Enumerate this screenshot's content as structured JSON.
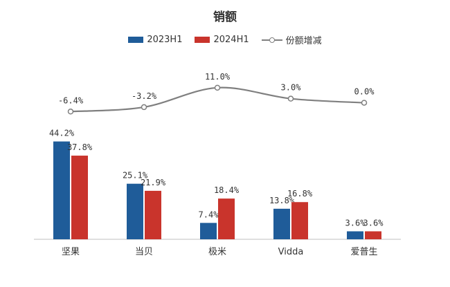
{
  "chart_data": {
    "type": "bar",
    "title": "销额",
    "categories": [
      "坚果",
      "当贝",
      "极米",
      "Vidda",
      "爱普生"
    ],
    "series": [
      {
        "name": "2023H1",
        "type": "bar",
        "values": [
          44.2,
          25.1,
          7.4,
          13.8,
          3.6
        ],
        "labels": [
          "44.2%",
          "25.1%",
          "7.4%",
          "13.8%",
          "3.6%"
        ],
        "color": "#1f5c99"
      },
      {
        "name": "2024H1",
        "type": "bar",
        "values": [
          37.8,
          21.9,
          18.4,
          16.8,
          3.6
        ],
        "labels": [
          "37.8%",
          "21.9%",
          "18.4%",
          "16.8%",
          "3.6%"
        ],
        "color": "#c9342c"
      },
      {
        "name": "份额增减",
        "type": "line",
        "values": [
          -6.4,
          -3.2,
          11.0,
          3.0,
          0.0
        ],
        "labels": [
          "-6.4%",
          "-3.2%",
          "11.0%",
          "3.0%",
          "0.0%"
        ],
        "color": "#7f7f7f"
      }
    ],
    "legend_position": "top",
    "grid": false
  }
}
